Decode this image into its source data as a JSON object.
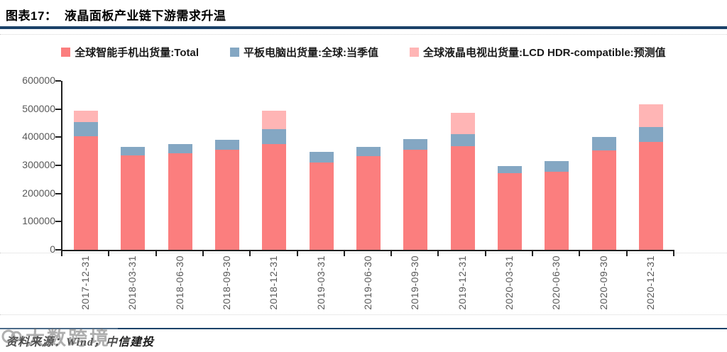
{
  "header": {
    "title": "图表17：  液晶面板产业链下游需求升温"
  },
  "accent_color": "#1b4269",
  "chart_data": {
    "type": "bar",
    "stacked": true,
    "title": "",
    "xlabel": "",
    "ylabel": "",
    "grid": false,
    "legend_position": "top",
    "ylim": [
      0,
      600000
    ],
    "yticks": [
      0,
      100000,
      200000,
      300000,
      400000,
      500000,
      600000
    ],
    "categories": [
      "2017-12-31",
      "2018-03-31",
      "2018-06-30",
      "2018-09-30",
      "2018-12-31",
      "2019-03-31",
      "2019-06-30",
      "2019-09-30",
      "2019-12-31",
      "2020-03-31",
      "2020-06-30",
      "2020-09-30",
      "2020-12-31"
    ],
    "series": [
      {
        "name": "全球智能手机出货量:Total",
        "color": "#FB7E7E",
        "values": [
          403000,
          336000,
          342000,
          355000,
          375000,
          311000,
          332000,
          355000,
          367000,
          273000,
          277000,
          352000,
          384000
        ]
      },
      {
        "name": "平板电脑出货量:全球:当季值",
        "color": "#84A7C3",
        "values": [
          50000,
          30000,
          33000,
          36000,
          53000,
          36000,
          33000,
          39000,
          44000,
          25000,
          38000,
          48000,
          51000
        ]
      },
      {
        "name": "全球液晶电视出货量:LCD HDR-compatible:预测值",
        "color": "#FFB5B5",
        "values": [
          40000,
          0,
          0,
          0,
          65000,
          0,
          0,
          0,
          75000,
          0,
          0,
          0,
          81000
        ]
      }
    ]
  },
  "footer": {
    "source": "资料来源：Wind，中信建投"
  },
  "watermark": {
    "text": "大数跨境"
  }
}
